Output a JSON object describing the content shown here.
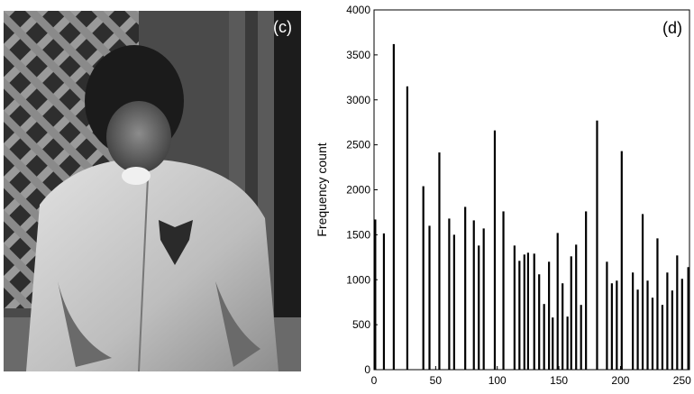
{
  "photo": {
    "label": "(c)",
    "description_icon": "grayscale-photo-child-jacket"
  },
  "chart_data": {
    "type": "bar",
    "panel_label": "(d)",
    "title": "",
    "xlabel": "",
    "ylabel": "Frequency count",
    "xlim": [
      0,
      256
    ],
    "ylim": [
      0,
      4000
    ],
    "xticks": [
      0,
      50,
      100,
      150,
      200,
      250
    ],
    "yticks": [
      0,
      500,
      1000,
      1500,
      2000,
      2500,
      3000,
      3500,
      4000
    ],
    "grid": false,
    "bar_color": "#000000",
    "x": [
      1,
      8,
      16,
      27,
      40,
      45,
      53,
      61,
      65,
      74,
      81,
      85,
      89,
      98,
      105,
      114,
      118,
      122,
      125,
      130,
      134,
      138,
      142,
      145,
      149,
      153,
      157,
      160,
      164,
      168,
      172,
      181,
      189,
      193,
      197,
      201,
      210,
      214,
      218,
      222,
      226,
      230,
      234,
      238,
      242,
      246,
      250,
      255
    ],
    "values": [
      1670,
      1515,
      3620,
      3150,
      2040,
      1600,
      2415,
      1680,
      1500,
      1810,
      1660,
      1380,
      1570,
      2660,
      1760,
      1380,
      1210,
      1280,
      1300,
      1290,
      1060,
      730,
      1200,
      580,
      1520,
      960,
      590,
      1260,
      1390,
      720,
      1760,
      2770,
      1200,
      960,
      990,
      2430,
      1080,
      890,
      1730,
      990,
      800,
      1460,
      720,
      1080,
      880,
      1270,
      1010,
      1140
    ]
  }
}
